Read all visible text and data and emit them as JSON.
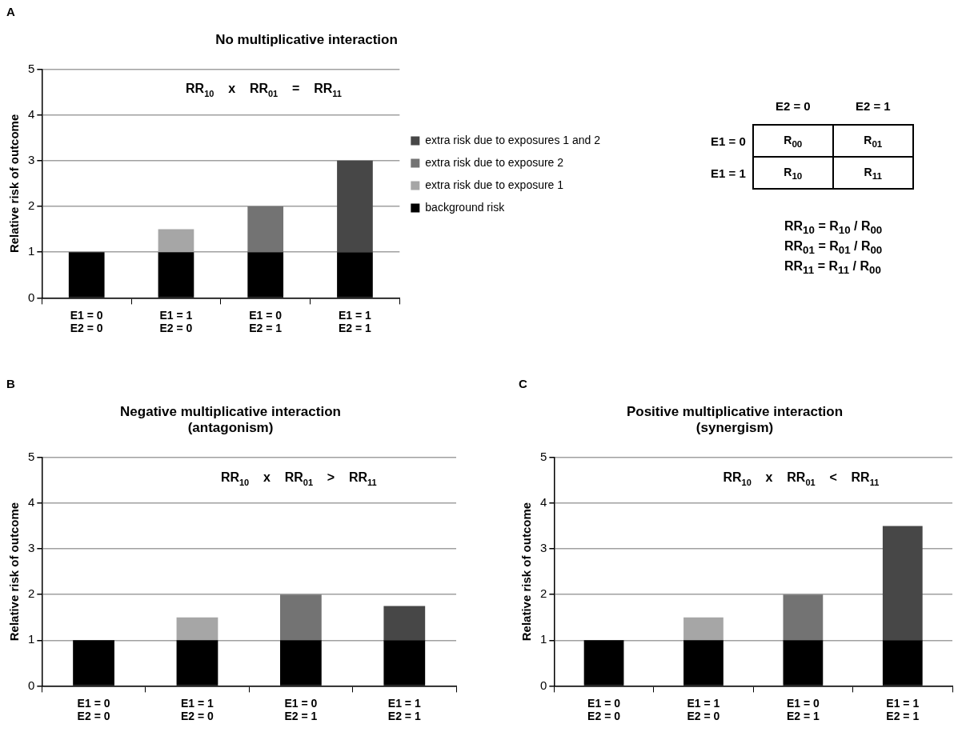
{
  "chart_data": [
    {
      "type": "bar",
      "title": "No multiplicative interaction",
      "ylabel": "Relative risk of outcome",
      "categories": [
        "E1 = 0\nE2 = 0",
        "E1 = 1\nE2 = 0",
        "E1 = 0\nE2 = 1",
        "E1 = 1\nE2 = 1"
      ],
      "stacked": true,
      "ylim": [
        0,
        5
      ],
      "yticks": [
        0,
        1,
        2,
        3,
        4,
        5
      ],
      "grid": "y",
      "legend": "right",
      "annotations": [
        "A",
        "RR$_{10}$    x    RR$_{01}$    =    RR$_{11}$"
      ],
      "series": [
        {
          "name": "background risk",
          "color": "#000000",
          "values": [
            1,
            1,
            1,
            1
          ]
        },
        {
          "name": "extra risk due to exposure 1",
          "color": "#a6a6a6",
          "values": [
            null,
            0.5,
            null,
            null
          ]
        },
        {
          "name": "extra risk due to exposure 2",
          "color": "#737373",
          "values": [
            null,
            null,
            1,
            null
          ]
        },
        {
          "name": "extra risk due to exposures 1 and 2",
          "color": "#474747",
          "values": [
            null,
            null,
            null,
            2
          ]
        }
      ]
    },
    {
      "type": "other",
      "annotations": [
        "E2 = 0",
        "E2 = 1",
        "E1 = 0",
        "E1 = 1",
        "R$_{00}$",
        "R$_{01}$",
        "R$_{10}$",
        "R$_{11}$",
        "RR$_{10}$ = R$_{10}$ / R$_{00}$",
        "RR$_{01}$ = R$_{01}$ / R$_{00}$",
        "RR$_{11}$ = R$_{11}$ / R$_{00}$"
      ]
    },
    {
      "type": "bar",
      "title": "Negative multiplicative interaction\n(antagonism)",
      "ylabel": "Relative risk of outcome",
      "categories": [
        "E1 = 0\nE2 = 0",
        "E1 = 1\nE2 = 0",
        "E1 = 0\nE2 = 1",
        "E1 = 1\nE2 = 1"
      ],
      "stacked": true,
      "ylim": [
        0,
        5
      ],
      "yticks": [
        0,
        1,
        2,
        3,
        4,
        5
      ],
      "grid": "y",
      "annotations": [
        "B",
        "RR$_{10}$    x    RR$_{01}$    >    RR$_{11}$"
      ],
      "series": [
        {
          "color": "#000000",
          "values": [
            1,
            1,
            1,
            1
          ]
        },
        {
          "color": "#a6a6a6",
          "values": [
            null,
            0.5,
            null,
            null
          ]
        },
        {
          "color": "#737373",
          "values": [
            null,
            null,
            1,
            null
          ]
        },
        {
          "color": "#474747",
          "values": [
            null,
            null,
            null,
            0.75
          ]
        }
      ]
    },
    {
      "type": "bar",
      "title": "Positive multiplicative interaction\n(synergism)",
      "ylabel": "Relative risk of outcome",
      "categories": [
        "E1 = 0\nE2 = 0",
        "E1 = 1\nE2 = 0",
        "E1 = 0\nE2 = 1",
        "E1 = 1\nE2 = 1"
      ],
      "stacked": true,
      "ylim": [
        0,
        5
      ],
      "yticks": [
        0,
        1,
        2,
        3,
        4,
        5
      ],
      "grid": "y",
      "annotations": [
        "C",
        "RR$_{10}$    x    RR$_{01}$    <    RR$_{11}$"
      ],
      "series": [
        {
          "color": "#000000",
          "values": [
            1,
            1,
            1,
            1
          ]
        },
        {
          "color": "#a6a6a6",
          "values": [
            null,
            0.5,
            null,
            null
          ]
        },
        {
          "color": "#737373",
          "values": [
            null,
            null,
            1,
            null
          ]
        },
        {
          "color": "#474747",
          "values": [
            null,
            null,
            null,
            2.5
          ]
        }
      ]
    }
  ]
}
